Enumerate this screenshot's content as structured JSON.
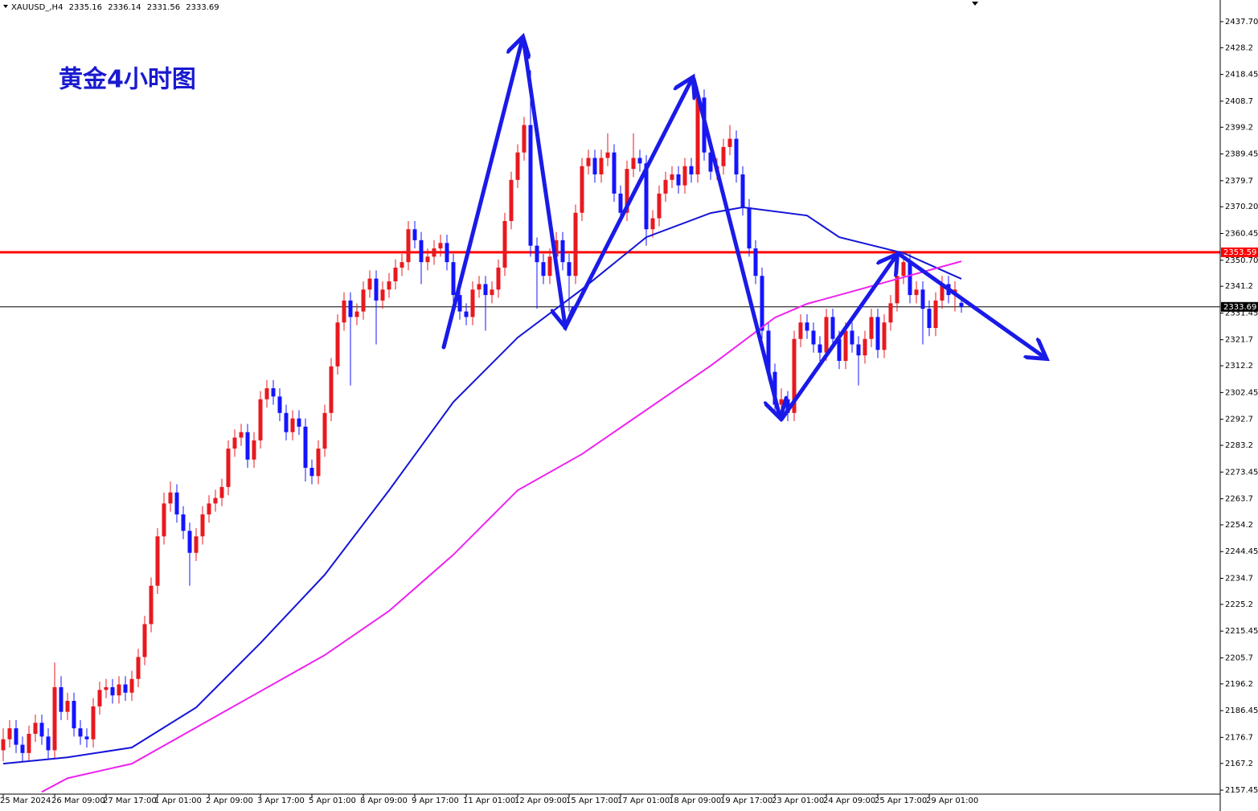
{
  "chart_data": {
    "type": "candlestick",
    "symbol": "XAUUSD_,H4",
    "title": "黄金4小时图",
    "up_color": "#e8191f",
    "down_color": "#1414ff",
    "ylim": [
      2156.0,
      2445.6
    ],
    "yticks": [
      {
        "value": 2437.7,
        "label": "2437.70"
      },
      2428.2,
      2418.45,
      2408.7,
      2399.2,
      2389.45,
      2379.7,
      {
        "value": 2370.2,
        "label": "2370.20"
      },
      2360.45,
      {
        "value": 2350.7,
        "label": "2350.70"
      },
      2341.2,
      2331.45,
      2321.7,
      2312.2,
      2302.45,
      2292.7,
      2283.2,
      2273.45,
      2263.7,
      2254.2,
      2244.45,
      2234.7,
      2225.2,
      2215.45,
      2205.7,
      2196.2,
      2186.45,
      2176.7,
      2167.2,
      2157.45
    ],
    "hlines": [
      {
        "value": 2353.59,
        "color": "#ff0000"
      },
      {
        "value": 2333.69,
        "color": "#000000"
      }
    ],
    "categories": [
      "25 Mar 2024",
      null,
      null,
      null,
      null,
      null,
      null,
      null,
      "26 Mar 09:00",
      null,
      null,
      null,
      null,
      null,
      null,
      null,
      "27 Mar 17:00",
      null,
      null,
      null,
      null,
      null,
      null,
      null,
      "1 Apr 01:00",
      null,
      null,
      null,
      null,
      null,
      null,
      null,
      "2 Apr 09:00",
      null,
      null,
      null,
      null,
      null,
      null,
      null,
      "3 Apr 17:00",
      null,
      null,
      null,
      null,
      null,
      null,
      null,
      "5 Apr 01:00",
      null,
      null,
      null,
      null,
      null,
      null,
      null,
      "8 Apr 09:00",
      null,
      null,
      null,
      null,
      null,
      null,
      null,
      "9 Apr 17:00",
      null,
      null,
      null,
      null,
      null,
      null,
      null,
      "11 Apr 01:00",
      null,
      null,
      null,
      null,
      null,
      null,
      null,
      "12 Apr 09:00",
      null,
      null,
      null,
      null,
      null,
      null,
      null,
      "15 Apr 17:00",
      null,
      null,
      null,
      null,
      null,
      null,
      null,
      "17 Apr 01:00",
      null,
      null,
      null,
      null,
      null,
      null,
      null,
      "18 Apr 09:00",
      null,
      null,
      null,
      null,
      null,
      null,
      null,
      "19 Apr 17:00",
      null,
      null,
      null,
      null,
      null,
      null,
      null,
      "23 Apr 01:00",
      null,
      null,
      null,
      null,
      null,
      null,
      null,
      "24 Apr 09:00",
      null,
      null,
      null,
      null,
      null,
      null,
      null,
      "25 Apr 17:00",
      null,
      null,
      null,
      null,
      null,
      null,
      null,
      "29 Apr 01:00",
      null,
      null,
      null,
      null,
      null
    ],
    "candles": [
      [
        2172,
        2180,
        2168,
        2176
      ],
      [
        2176,
        2183,
        2173,
        2180
      ],
      [
        2180,
        2183,
        2171,
        2174
      ],
      [
        2174,
        2177,
        2168,
        2171
      ],
      [
        2171,
        2181,
        2168,
        2178
      ],
      [
        2178,
        2185,
        2175,
        2182
      ],
      [
        2182,
        2185,
        2174,
        2177
      ],
      [
        2177,
        2180,
        2169,
        2172
      ],
      [
        2172,
        2204,
        2169,
        2195
      ],
      [
        2195,
        2199,
        2183,
        2186
      ],
      [
        2186,
        2193,
        2183,
        2190
      ],
      [
        2190,
        2193,
        2177,
        2180
      ],
      [
        2180,
        2183,
        2174,
        2177
      ],
      [
        2177,
        2180,
        2173,
        2176
      ],
      [
        2176,
        2191,
        2173,
        2188
      ],
      [
        2188,
        2197,
        2185,
        2194
      ],
      [
        2194,
        2198,
        2191,
        2195
      ],
      [
        2195,
        2198,
        2189,
        2192
      ],
      [
        2192,
        2199,
        2189,
        2196
      ],
      [
        2196,
        2199,
        2190,
        2193
      ],
      [
        2193,
        2201,
        2190,
        2198
      ],
      [
        2198,
        2209,
        2195,
        2206
      ],
      [
        2206,
        2221,
        2203,
        2218
      ],
      [
        2218,
        2235,
        2215,
        2232
      ],
      [
        2232,
        2253,
        2229,
        2250
      ],
      [
        2250,
        2266,
        2247,
        2262
      ],
      [
        2262,
        2270,
        2259,
        2266
      ],
      [
        2266,
        2269,
        2255,
        2258
      ],
      [
        2258,
        2261,
        2249,
        2252
      ],
      [
        2252,
        2255,
        2232,
        2244
      ],
      [
        2244,
        2253,
        2241,
        2250
      ],
      [
        2250,
        2261,
        2247,
        2258
      ],
      [
        2258,
        2265,
        2255,
        2262
      ],
      [
        2262,
        2267,
        2259,
        2264
      ],
      [
        2264,
        2271,
        2261,
        2268
      ],
      [
        2268,
        2285,
        2265,
        2282
      ],
      [
        2282,
        2289,
        2279,
        2286
      ],
      [
        2286,
        2291,
        2283,
        2288
      ],
      [
        2288,
        2291,
        2275,
        2278
      ],
      [
        2278,
        2288,
        2275,
        2285
      ],
      [
        2285,
        2303,
        2282,
        2300
      ],
      [
        2300,
        2307,
        2297,
        2304
      ],
      [
        2304,
        2307,
        2298,
        2301
      ],
      [
        2301,
        2304,
        2292,
        2295
      ],
      [
        2295,
        2298,
        2285,
        2288
      ],
      [
        2288,
        2296,
        2285,
        2293
      ],
      [
        2293,
        2296,
        2287,
        2290
      ],
      [
        2290,
        2293,
        2270,
        2275
      ],
      [
        2275,
        2278,
        2269,
        2272
      ],
      [
        2272,
        2285,
        2269,
        2282
      ],
      [
        2282,
        2298,
        2279,
        2295
      ],
      [
        2295,
        2315,
        2292,
        2312
      ],
      [
        2312,
        2331,
        2309,
        2328
      ],
      [
        2328,
        2339,
        2325,
        2336
      ],
      [
        2336,
        2339,
        2305,
        2330
      ],
      [
        2330,
        2335,
        2327,
        2332
      ],
      [
        2332,
        2343,
        2329,
        2340
      ],
      [
        2340,
        2347,
        2337,
        2344
      ],
      [
        2344,
        2347,
        2320,
        2336
      ],
      [
        2336,
        2343,
        2333,
        2340
      ],
      [
        2340,
        2346,
        2337,
        2343
      ],
      [
        2343,
        2351,
        2340,
        2348
      ],
      [
        2348,
        2353,
        2345,
        2350
      ],
      [
        2350,
        2365,
        2347,
        2362
      ],
      [
        2362,
        2365,
        2355,
        2358
      ],
      [
        2358,
        2361,
        2342,
        2350
      ],
      [
        2350,
        2355,
        2347,
        2352
      ],
      [
        2352,
        2358,
        2349,
        2355
      ],
      [
        2355,
        2360,
        2352,
        2357
      ],
      [
        2357,
        2360,
        2347,
        2350
      ],
      [
        2350,
        2353,
        2335,
        2338
      ],
      [
        2338,
        2341,
        2329,
        2332
      ],
      [
        2332,
        2335,
        2327,
        2330
      ],
      [
        2330,
        2343,
        2327,
        2340
      ],
      [
        2340,
        2345,
        2337,
        2342
      ],
      [
        2342,
        2345,
        2325,
        2338
      ],
      [
        2338,
        2343,
        2335,
        2340
      ],
      [
        2340,
        2351,
        2337,
        2348
      ],
      [
        2348,
        2368,
        2345,
        2365
      ],
      [
        2365,
        2383,
        2362,
        2380
      ],
      [
        2380,
        2393,
        2377,
        2390
      ],
      [
        2390,
        2403,
        2387,
        2400
      ],
      [
        2400,
        2420,
        2352,
        2356
      ],
      [
        2356,
        2359,
        2333,
        2350
      ],
      [
        2350,
        2353,
        2342,
        2345
      ],
      [
        2345,
        2355,
        2342,
        2352
      ],
      [
        2352,
        2361,
        2349,
        2358
      ],
      [
        2358,
        2361,
        2347,
        2350
      ],
      [
        2350,
        2353,
        2332,
        2345
      ],
      [
        2345,
        2371,
        2342,
        2368
      ],
      [
        2368,
        2388,
        2365,
        2385
      ],
      [
        2385,
        2391,
        2382,
        2388
      ],
      [
        2388,
        2391,
        2379,
        2382
      ],
      [
        2382,
        2391,
        2379,
        2388
      ],
      [
        2388,
        2397,
        2385,
        2390
      ],
      [
        2390,
        2393,
        2372,
        2375
      ],
      [
        2375,
        2378,
        2365,
        2368
      ],
      [
        2368,
        2387,
        2365,
        2384
      ],
      [
        2384,
        2397,
        2381,
        2388
      ],
      [
        2388,
        2391,
        2383,
        2386
      ],
      [
        2386,
        2389,
        2356,
        2362
      ],
      [
        2362,
        2369,
        2359,
        2366
      ],
      [
        2366,
        2378,
        2363,
        2375
      ],
      [
        2375,
        2383,
        2372,
        2380
      ],
      [
        2380,
        2385,
        2377,
        2382
      ],
      [
        2382,
        2385,
        2375,
        2378
      ],
      [
        2378,
        2388,
        2375,
        2385
      ],
      [
        2385,
        2388,
        2379,
        2382
      ],
      [
        2382,
        2414,
        2379,
        2410
      ],
      [
        2410,
        2413,
        2387,
        2390
      ],
      [
        2390,
        2393,
        2380,
        2383
      ],
      [
        2383,
        2388,
        2380,
        2385
      ],
      [
        2385,
        2395,
        2382,
        2392
      ],
      [
        2392,
        2400,
        2389,
        2395
      ],
      [
        2395,
        2398,
        2379,
        2382
      ],
      [
        2382,
        2385,
        2367,
        2370
      ],
      [
        2370,
        2373,
        2352,
        2355
      ],
      [
        2355,
        2358,
        2342,
        2345
      ],
      [
        2345,
        2348,
        2322,
        2325
      ],
      [
        2325,
        2328,
        2307,
        2310
      ],
      [
        2310,
        2313,
        2294,
        2298
      ],
      [
        2298,
        2304,
        2295,
        2300
      ],
      [
        2300,
        2303,
        2292,
        2295
      ],
      [
        2295,
        2325,
        2292,
        2322
      ],
      [
        2322,
        2331,
        2319,
        2328
      ],
      [
        2328,
        2331,
        2322,
        2325
      ],
      [
        2325,
        2328,
        2317,
        2320
      ],
      [
        2320,
        2323,
        2314,
        2317
      ],
      [
        2317,
        2333,
        2314,
        2330
      ],
      [
        2330,
        2333,
        2319,
        2322
      ],
      [
        2322,
        2325,
        2311,
        2314
      ],
      [
        2314,
        2328,
        2311,
        2325
      ],
      [
        2325,
        2328,
        2317,
        2320
      ],
      [
        2320,
        2323,
        2305,
        2316
      ],
      [
        2316,
        2325,
        2313,
        2322
      ],
      [
        2322,
        2333,
        2319,
        2330
      ],
      [
        2330,
        2333,
        2315,
        2318
      ],
      [
        2318,
        2331,
        2315,
        2328
      ],
      [
        2328,
        2338,
        2325,
        2335
      ],
      [
        2335,
        2348,
        2332,
        2345
      ],
      [
        2345,
        2353,
        2342,
        2350
      ],
      [
        2350,
        2353,
        2335,
        2338
      ],
      [
        2338,
        2343,
        2335,
        2340
      ],
      [
        2340,
        2343,
        2320,
        2333
      ],
      [
        2333,
        2336,
        2323,
        2326
      ],
      [
        2326,
        2339,
        2323,
        2336
      ],
      [
        2336,
        2345,
        2333,
        2342
      ],
      [
        2342,
        2345,
        2335,
        2338
      ],
      [
        2338,
        2343,
        2332,
        2340
      ],
      [
        2335.16,
        2336.14,
        2331.56,
        2333.69
      ]
    ],
    "ma_lines": [
      {
        "color": "#1414d8",
        "x": [
          0,
          10,
          20,
          30,
          40,
          50,
          60,
          70,
          80,
          90,
          100,
          110,
          115,
          125,
          130,
          140,
          149
        ],
        "values": [
          2167.1,
          2169.4,
          2173.0,
          2187.6,
          2211.1,
          2236.0,
          2266.8,
          2299.0,
          2322.5,
          2340.1,
          2359.1,
          2367.9,
          2370.0,
          2367.0,
          2359.1,
          2353.3,
          2343.9
        ]
      },
      {
        "color": "#ee22ee",
        "x": [
          6,
          10,
          20,
          30,
          40,
          50,
          60,
          70,
          80,
          90,
          100,
          110,
          120,
          125,
          130,
          140,
          149
        ],
        "values": [
          2156.8,
          2161.8,
          2167.1,
          2180.3,
          2193.5,
          2206.7,
          2222.8,
          2243.3,
          2266.8,
          2280.0,
          2296.1,
          2312.2,
          2329.8,
          2334.8,
          2338.0,
          2344.5,
          2350.3
        ]
      }
    ]
  }
}
